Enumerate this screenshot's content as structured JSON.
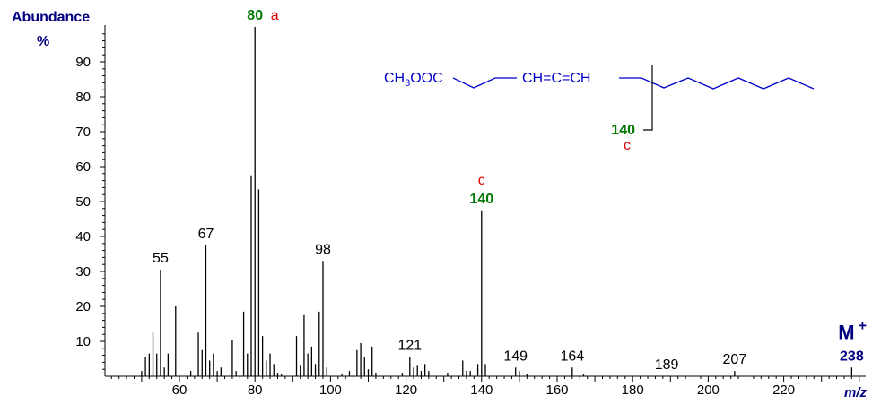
{
  "chart_data": {
    "type": "bar",
    "title": "",
    "ylabel_line1": "Abundance",
    "ylabel_line2": "%",
    "xlabel": "m/z",
    "xlim": [
      40,
      240
    ],
    "ylim": [
      0,
      100
    ],
    "xticks": [
      60,
      80,
      100,
      120,
      140,
      160,
      180,
      200,
      220
    ],
    "yticks": [
      10,
      20,
      30,
      40,
      50,
      60,
      70,
      80,
      90
    ],
    "grid": false,
    "colors": {
      "axis": "#000000",
      "bars": "#000000",
      "axis_text": "#000000",
      "green": "#007700",
      "red": "#dd0000",
      "blue": "#0000cc",
      "navy": "#000080"
    },
    "peaks": [
      {
        "x": 50,
        "y": 1.5
      },
      {
        "x": 51,
        "y": 5.5
      },
      {
        "x": 52,
        "y": 6.5
      },
      {
        "x": 53,
        "y": 12.5
      },
      {
        "x": 54,
        "y": 6.5
      },
      {
        "x": 55,
        "y": 30.5
      },
      {
        "x": 56,
        "y": 2.5
      },
      {
        "x": 57,
        "y": 6.5
      },
      {
        "x": 59,
        "y": 20
      },
      {
        "x": 63,
        "y": 1.5
      },
      {
        "x": 65,
        "y": 12.5
      },
      {
        "x": 66,
        "y": 7.5
      },
      {
        "x": 67,
        "y": 37.5
      },
      {
        "x": 68,
        "y": 4.5
      },
      {
        "x": 69,
        "y": 6.5
      },
      {
        "x": 70,
        "y": 1.5
      },
      {
        "x": 71,
        "y": 2.5
      },
      {
        "x": 74,
        "y": 10.5
      },
      {
        "x": 75,
        "y": 1.5
      },
      {
        "x": 77,
        "y": 18.5
      },
      {
        "x": 78,
        "y": 6.5
      },
      {
        "x": 79,
        "y": 57.5
      },
      {
        "x": 80,
        "y": 100
      },
      {
        "x": 81,
        "y": 53.5
      },
      {
        "x": 82,
        "y": 11.5
      },
      {
        "x": 83,
        "y": 4.5
      },
      {
        "x": 84,
        "y": 6.5
      },
      {
        "x": 85,
        "y": 3.5
      },
      {
        "x": 86,
        "y": 1
      },
      {
        "x": 87,
        "y": 0.5
      },
      {
        "x": 91,
        "y": 11.5
      },
      {
        "x": 92,
        "y": 3
      },
      {
        "x": 93,
        "y": 17.5
      },
      {
        "x": 94,
        "y": 6.5
      },
      {
        "x": 95,
        "y": 8.5
      },
      {
        "x": 96,
        "y": 3.5
      },
      {
        "x": 97,
        "y": 18.5
      },
      {
        "x": 98,
        "y": 33
      },
      {
        "x": 99,
        "y": 2.5
      },
      {
        "x": 103,
        "y": 0.5
      },
      {
        "x": 105,
        "y": 1.5
      },
      {
        "x": 107,
        "y": 7.5
      },
      {
        "x": 108,
        "y": 9.5
      },
      {
        "x": 109,
        "y": 5.5
      },
      {
        "x": 110,
        "y": 2
      },
      {
        "x": 111,
        "y": 8.5
      },
      {
        "x": 112,
        "y": 1
      },
      {
        "x": 119,
        "y": 1
      },
      {
        "x": 121,
        "y": 5.5
      },
      {
        "x": 122,
        "y": 2.5
      },
      {
        "x": 123,
        "y": 3
      },
      {
        "x": 124,
        "y": 1.5
      },
      {
        "x": 125,
        "y": 3.5
      },
      {
        "x": 126,
        "y": 1.5
      },
      {
        "x": 131,
        "y": 1
      },
      {
        "x": 135,
        "y": 4.5
      },
      {
        "x": 136,
        "y": 1.5
      },
      {
        "x": 137,
        "y": 1.5
      },
      {
        "x": 139,
        "y": 3.5
      },
      {
        "x": 140,
        "y": 47.5
      },
      {
        "x": 141,
        "y": 3.5
      },
      {
        "x": 149,
        "y": 2.5
      },
      {
        "x": 150,
        "y": 1.5
      },
      {
        "x": 152,
        "y": 0.5
      },
      {
        "x": 164,
        "y": 2.5
      },
      {
        "x": 167,
        "y": 0.5
      },
      {
        "x": 207,
        "y": 1.5
      },
      {
        "x": 238,
        "y": 2.5
      }
    ],
    "peak_labels": [
      {
        "text": "55",
        "x": 55,
        "y": 30.5,
        "color": "#000000",
        "bold": false
      },
      {
        "text": "67",
        "x": 67,
        "y": 37.5,
        "color": "#000000",
        "bold": false
      },
      {
        "text": "80",
        "x": 80,
        "y": 100,
        "color": "#007700",
        "bold": true,
        "suffix": "a",
        "suffix_color": "#dd0000"
      },
      {
        "text": "98",
        "x": 98,
        "y": 33,
        "color": "#000000",
        "bold": false
      },
      {
        "text": "121",
        "x": 121,
        "y": 5.5,
        "color": "#000000",
        "bold": false
      },
      {
        "text": "140",
        "x": 140,
        "y": 47.5,
        "color": "#007700",
        "bold": true,
        "top": "c",
        "top_color": "#dd0000"
      },
      {
        "text": "149",
        "x": 149,
        "y": 2.5,
        "color": "#000000",
        "bold": false
      },
      {
        "text": "164",
        "x": 164,
        "y": 2.5,
        "color": "#000000",
        "bold": false
      },
      {
        "text": "189",
        "x": 189,
        "y": 0,
        "color": "#000000",
        "bold": false
      },
      {
        "text": "207",
        "x": 207,
        "y": 1.5,
        "color": "#000000",
        "bold": false
      },
      {
        "text": "238",
        "x": 238,
        "y": 2.5,
        "color": "#000080",
        "bold": true,
        "top": "M+",
        "top_color": "#000080"
      }
    ],
    "structure": {
      "formula_prefix": "CH",
      "formula_sub": "3",
      "formula_rest": "OOC",
      "allene": "CH=C=CH",
      "fragment_mass": "140",
      "fragment_tag": "c"
    }
  }
}
